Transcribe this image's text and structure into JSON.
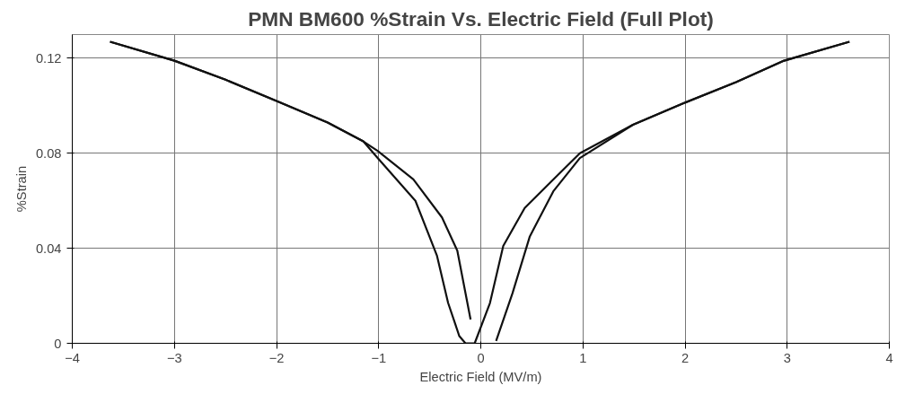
{
  "chart_data": {
    "type": "line",
    "title": "PMN BM600 %Strain Vs. Electric Field (Full Plot)",
    "xlabel": "Electric Field (MV/m)",
    "ylabel": "%Strain",
    "series": [
      {
        "color": "#111111",
        "x": [
          3.61,
          2.97,
          2.5,
          1.98,
          1.49,
          0.97,
          0.71,
          0.43,
          0.22,
          0.09,
          -0.06,
          -0.15,
          -0.21,
          -0.32,
          -0.43,
          -0.64,
          -1.01,
          -1.15,
          -1.5,
          -2.0,
          -2.5,
          -3.0,
          -3.63
        ],
        "values": [
          0.127,
          0.119,
          0.11,
          0.101,
          0.092,
          0.08,
          0.069,
          0.057,
          0.041,
          0.017,
          0,
          0,
          0.003,
          0.017,
          0.037,
          0.06,
          0.078,
          0.085,
          0.093,
          0.102,
          0.111,
          0.119,
          0.127
        ]
      },
      {
        "color": "#111111",
        "x": [
          -3.63,
          -3.0,
          -2.5,
          -2.0,
          -1.5,
          -1.15,
          -1.01,
          -0.66,
          -0.38,
          -0.23,
          -0.1,
          0.0,
          0.15,
          0.31,
          0.48,
          0.71,
          0.97,
          1.49,
          1.98,
          2.5,
          2.97,
          3.61
        ],
        "values": [
          0.127,
          0.119,
          0.111,
          0.102,
          0.093,
          0.085,
          0.081,
          0.069,
          0.053,
          0.039,
          0.01,
          null,
          0.001,
          0.021,
          0.045,
          0.064,
          0.078,
          0.092,
          0.101,
          0.11,
          0.119,
          0.127
        ]
      }
    ],
    "xlim": [
      -4,
      4
    ],
    "xticks": [
      -4,
      -3,
      -2,
      -1,
      0,
      1,
      2,
      3,
      4
    ],
    "ylim": [
      0,
      0.13
    ],
    "yticks": [
      0,
      0.04,
      0.08,
      0.12
    ],
    "grid": true,
    "marker": "none",
    "line_style": "solid"
  }
}
